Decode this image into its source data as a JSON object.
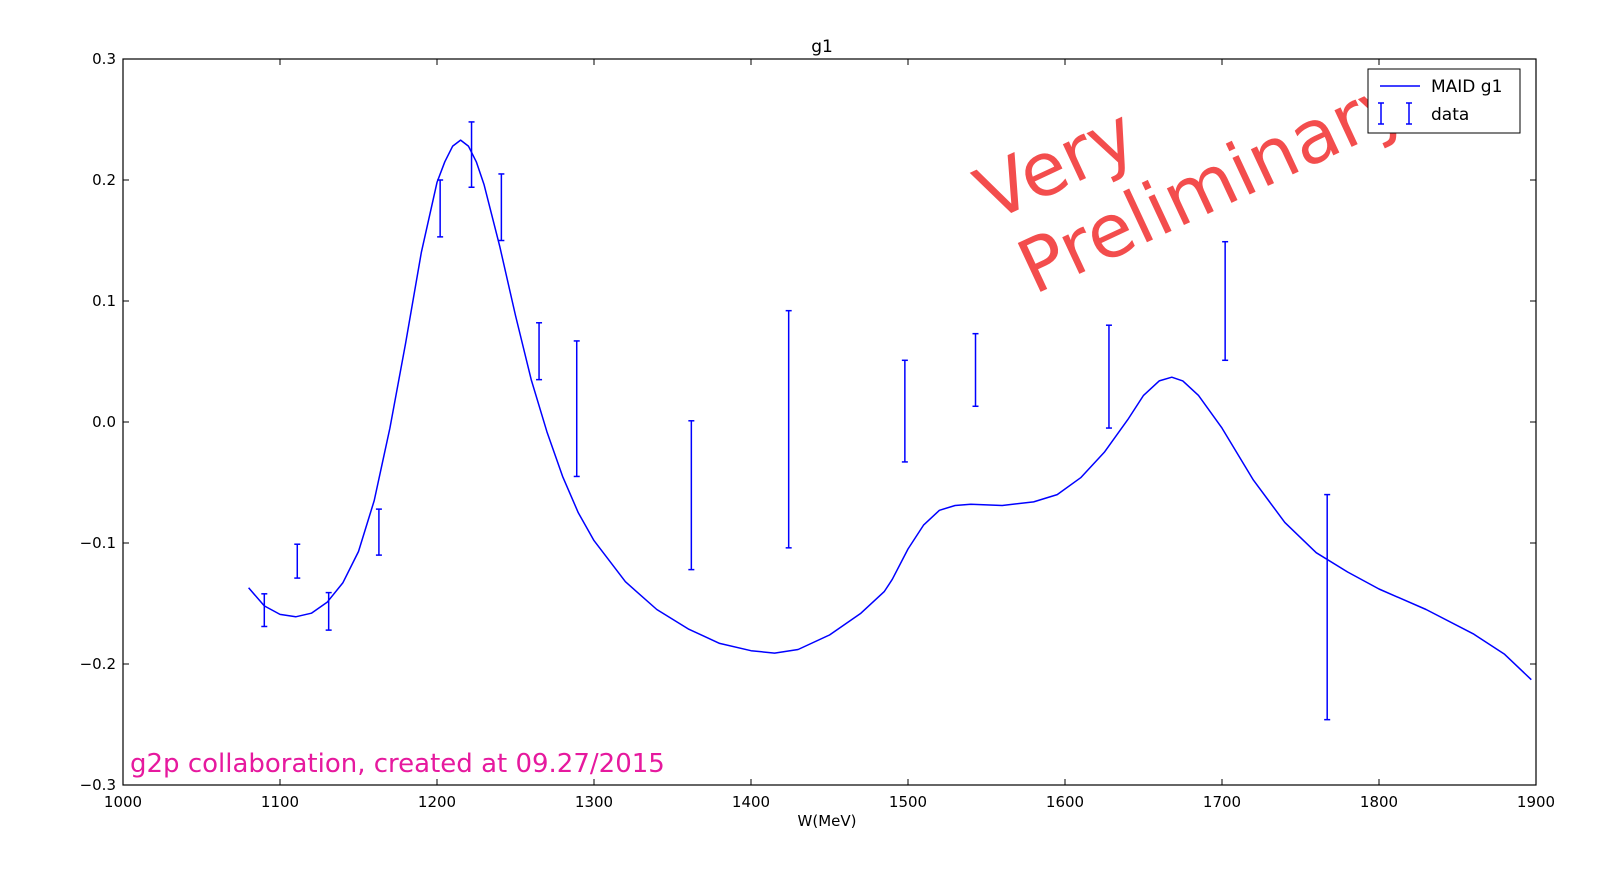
{
  "chart_data": {
    "type": "line",
    "title": "g1",
    "xlabel": "W(MeV)",
    "ylabel": "",
    "xlim": [
      1000,
      1900
    ],
    "ylim": [
      -0.3,
      0.3
    ],
    "x_ticks": [
      1000,
      1100,
      1200,
      1300,
      1400,
      1500,
      1600,
      1700,
      1800,
      1900
    ],
    "y_ticks": [
      -0.3,
      -0.2,
      -0.1,
      0.0,
      0.1,
      0.2,
      0.3
    ],
    "x_tick_labels": [
      "1000",
      "1100",
      "1200",
      "1300",
      "1400",
      "1500",
      "1600",
      "1700",
      "1800",
      "1900"
    ],
    "y_tick_labels": [
      "−0.3",
      "−0.2",
      "−0.1",
      "0.0",
      "0.1",
      "0.2",
      "0.3"
    ],
    "grid": false,
    "legend_position": "top-right",
    "colors": {
      "series": "#0000ff",
      "watermark": "#f23a3a",
      "credit": "#e6199e"
    },
    "series": [
      {
        "name": "MAID g1",
        "kind": "line",
        "x": [
          1080,
          1090,
          1100,
          1110,
          1120,
          1130,
          1140,
          1150,
          1160,
          1170,
          1180,
          1190,
          1200,
          1205,
          1210,
          1215,
          1220,
          1225,
          1230,
          1240,
          1250,
          1260,
          1270,
          1280,
          1290,
          1300,
          1320,
          1340,
          1360,
          1380,
          1400,
          1415,
          1430,
          1450,
          1470,
          1485,
          1490,
          1500,
          1510,
          1520,
          1530,
          1540,
          1560,
          1580,
          1595,
          1610,
          1625,
          1640,
          1650,
          1660,
          1668,
          1675,
          1685,
          1700,
          1720,
          1740,
          1760,
          1780,
          1800,
          1830,
          1860,
          1880,
          1897
        ],
        "y": [
          -0.137,
          -0.152,
          -0.159,
          -0.161,
          -0.158,
          -0.149,
          -0.133,
          -0.107,
          -0.065,
          -0.005,
          0.065,
          0.14,
          0.198,
          0.215,
          0.228,
          0.233,
          0.228,
          0.215,
          0.196,
          0.145,
          0.088,
          0.035,
          -0.008,
          -0.045,
          -0.075,
          -0.098,
          -0.132,
          -0.155,
          -0.171,
          -0.183,
          -0.189,
          -0.191,
          -0.188,
          -0.176,
          -0.158,
          -0.14,
          -0.13,
          -0.105,
          -0.085,
          -0.073,
          -0.069,
          -0.068,
          -0.069,
          -0.066,
          -0.06,
          -0.046,
          -0.025,
          0.002,
          0.022,
          0.034,
          0.037,
          0.034,
          0.022,
          -0.005,
          -0.048,
          -0.083,
          -0.108,
          -0.124,
          -0.138,
          -0.155,
          -0.175,
          -0.192,
          -0.213
        ]
      },
      {
        "name": "data",
        "kind": "errorbar",
        "points": [
          {
            "x": 1090,
            "ylow": -0.169,
            "yhigh": -0.142
          },
          {
            "x": 1111,
            "ylow": -0.129,
            "yhigh": -0.101
          },
          {
            "x": 1131,
            "ylow": -0.172,
            "yhigh": -0.141
          },
          {
            "x": 1163,
            "ylow": -0.11,
            "yhigh": -0.072
          },
          {
            "x": 1202,
            "ylow": 0.153,
            "yhigh": 0.2
          },
          {
            "x": 1222,
            "ylow": 0.194,
            "yhigh": 0.248
          },
          {
            "x": 1241,
            "ylow": 0.15,
            "yhigh": 0.205
          },
          {
            "x": 1265,
            "ylow": 0.035,
            "yhigh": 0.082
          },
          {
            "x": 1289,
            "ylow": -0.045,
            "yhigh": 0.067
          },
          {
            "x": 1362,
            "ylow": -0.122,
            "yhigh": 0.001
          },
          {
            "x": 1424,
            "ylow": -0.104,
            "yhigh": 0.092
          },
          {
            "x": 1498,
            "ylow": -0.033,
            "yhigh": 0.051
          },
          {
            "x": 1543,
            "ylow": 0.013,
            "yhigh": 0.073
          },
          {
            "x": 1628,
            "ylow": -0.005,
            "yhigh": 0.08
          },
          {
            "x": 1702,
            "ylow": 0.051,
            "yhigh": 0.149
          },
          {
            "x": 1767,
            "ylow": -0.246,
            "yhigh": -0.06
          }
        ]
      }
    ],
    "annotations": {
      "watermark_line1": "Very",
      "watermark_line2": "Preliminary",
      "credit": "g2p collaboration, created at 09.27/2015"
    }
  }
}
